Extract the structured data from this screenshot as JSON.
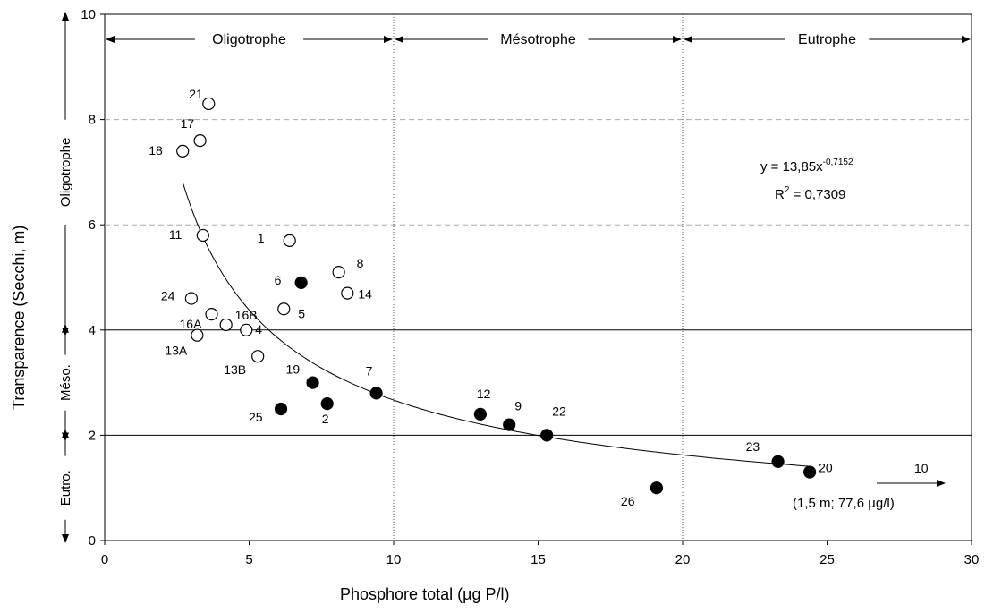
{
  "chart_data": {
    "type": "scatter",
    "xlabel": "Phosphore total (µg P/l)",
    "ylabel": "Transparence (Secchi, m)",
    "xlim": [
      0,
      30
    ],
    "ylim": [
      0,
      10
    ],
    "x_ticks": [
      "0",
      "5",
      "10",
      "15",
      "20",
      "25",
      "30"
    ],
    "y_ticks": [
      "0",
      "2",
      "4",
      "6",
      "8",
      "10"
    ],
    "zones_x": [
      {
        "label": "Oligotrophe",
        "from": 0,
        "to": 10
      },
      {
        "label": "Mésotrophe",
        "from": 10,
        "to": 20
      },
      {
        "label": "Eutrophe",
        "from": 20,
        "to": 30
      }
    ],
    "zones_y": [
      {
        "label": "Eutro.",
        "from": 0,
        "to": 2
      },
      {
        "label": "Méso.",
        "from": 2,
        "to": 4
      },
      {
        "label": "Oligotrophe",
        "from": 4,
        "to": 10
      }
    ],
    "dashed_gridlines_y": [
      6,
      8
    ],
    "solid_lines_y": [
      2,
      4
    ],
    "dotted_lines_x": [
      10,
      20
    ],
    "equation": {
      "prefix": "y = 13,85x",
      "exponent": "-0,7152",
      "r2_prefix": "R",
      "r2_exp": "2",
      "r2_value": " = 0,7309"
    },
    "trendline": {
      "a": 13.85,
      "b": -0.7152,
      "x_from": 2.7,
      "x_to": 24.4
    },
    "outlier": {
      "label": "10",
      "note": "(1,5 m; 77,6 µg/l)"
    },
    "series": [
      {
        "marker": "open",
        "points": [
          {
            "label": "21",
            "x": 3.6,
            "y": 8.3
          },
          {
            "label": "17",
            "x": 3.3,
            "y": 7.6
          },
          {
            "label": "18",
            "x": 2.7,
            "y": 7.4
          },
          {
            "label": "11",
            "x": 3.4,
            "y": 5.8
          },
          {
            "label": "1",
            "x": 6.4,
            "y": 5.7
          },
          {
            "label": "8",
            "x": 8.1,
            "y": 5.1
          },
          {
            "label": "14",
            "x": 8.4,
            "y": 4.7
          },
          {
            "label": "24",
            "x": 3.0,
            "y": 4.6
          },
          {
            "label": "5",
            "x": 6.2,
            "y": 4.4
          },
          {
            "label": "16A",
            "x": 3.7,
            "y": 4.3
          },
          {
            "label": "16B",
            "x": 4.2,
            "y": 4.1
          },
          {
            "label": "4",
            "x": 4.9,
            "y": 4.0
          },
          {
            "label": "13A",
            "x": 3.2,
            "y": 3.9
          },
          {
            "label": "13B",
            "x": 5.3,
            "y": 3.5
          }
        ]
      },
      {
        "marker": "filled",
        "points": [
          {
            "label": "6",
            "x": 6.8,
            "y": 4.9
          },
          {
            "label": "19",
            "x": 7.2,
            "y": 3.0
          },
          {
            "label": "7",
            "x": 9.4,
            "y": 2.8
          },
          {
            "label": "2",
            "x": 7.7,
            "y": 2.6
          },
          {
            "label": "25",
            "x": 6.1,
            "y": 2.5
          },
          {
            "label": "12",
            "x": 13.0,
            "y": 2.4
          },
          {
            "label": "9",
            "x": 14.0,
            "y": 2.2
          },
          {
            "label": "22",
            "x": 15.3,
            "y": 2.0
          },
          {
            "label": "23",
            "x": 23.3,
            "y": 1.5
          },
          {
            "label": "20",
            "x": 24.4,
            "y": 1.3
          },
          {
            "label": "26",
            "x": 19.1,
            "y": 1.0
          }
        ]
      }
    ]
  }
}
